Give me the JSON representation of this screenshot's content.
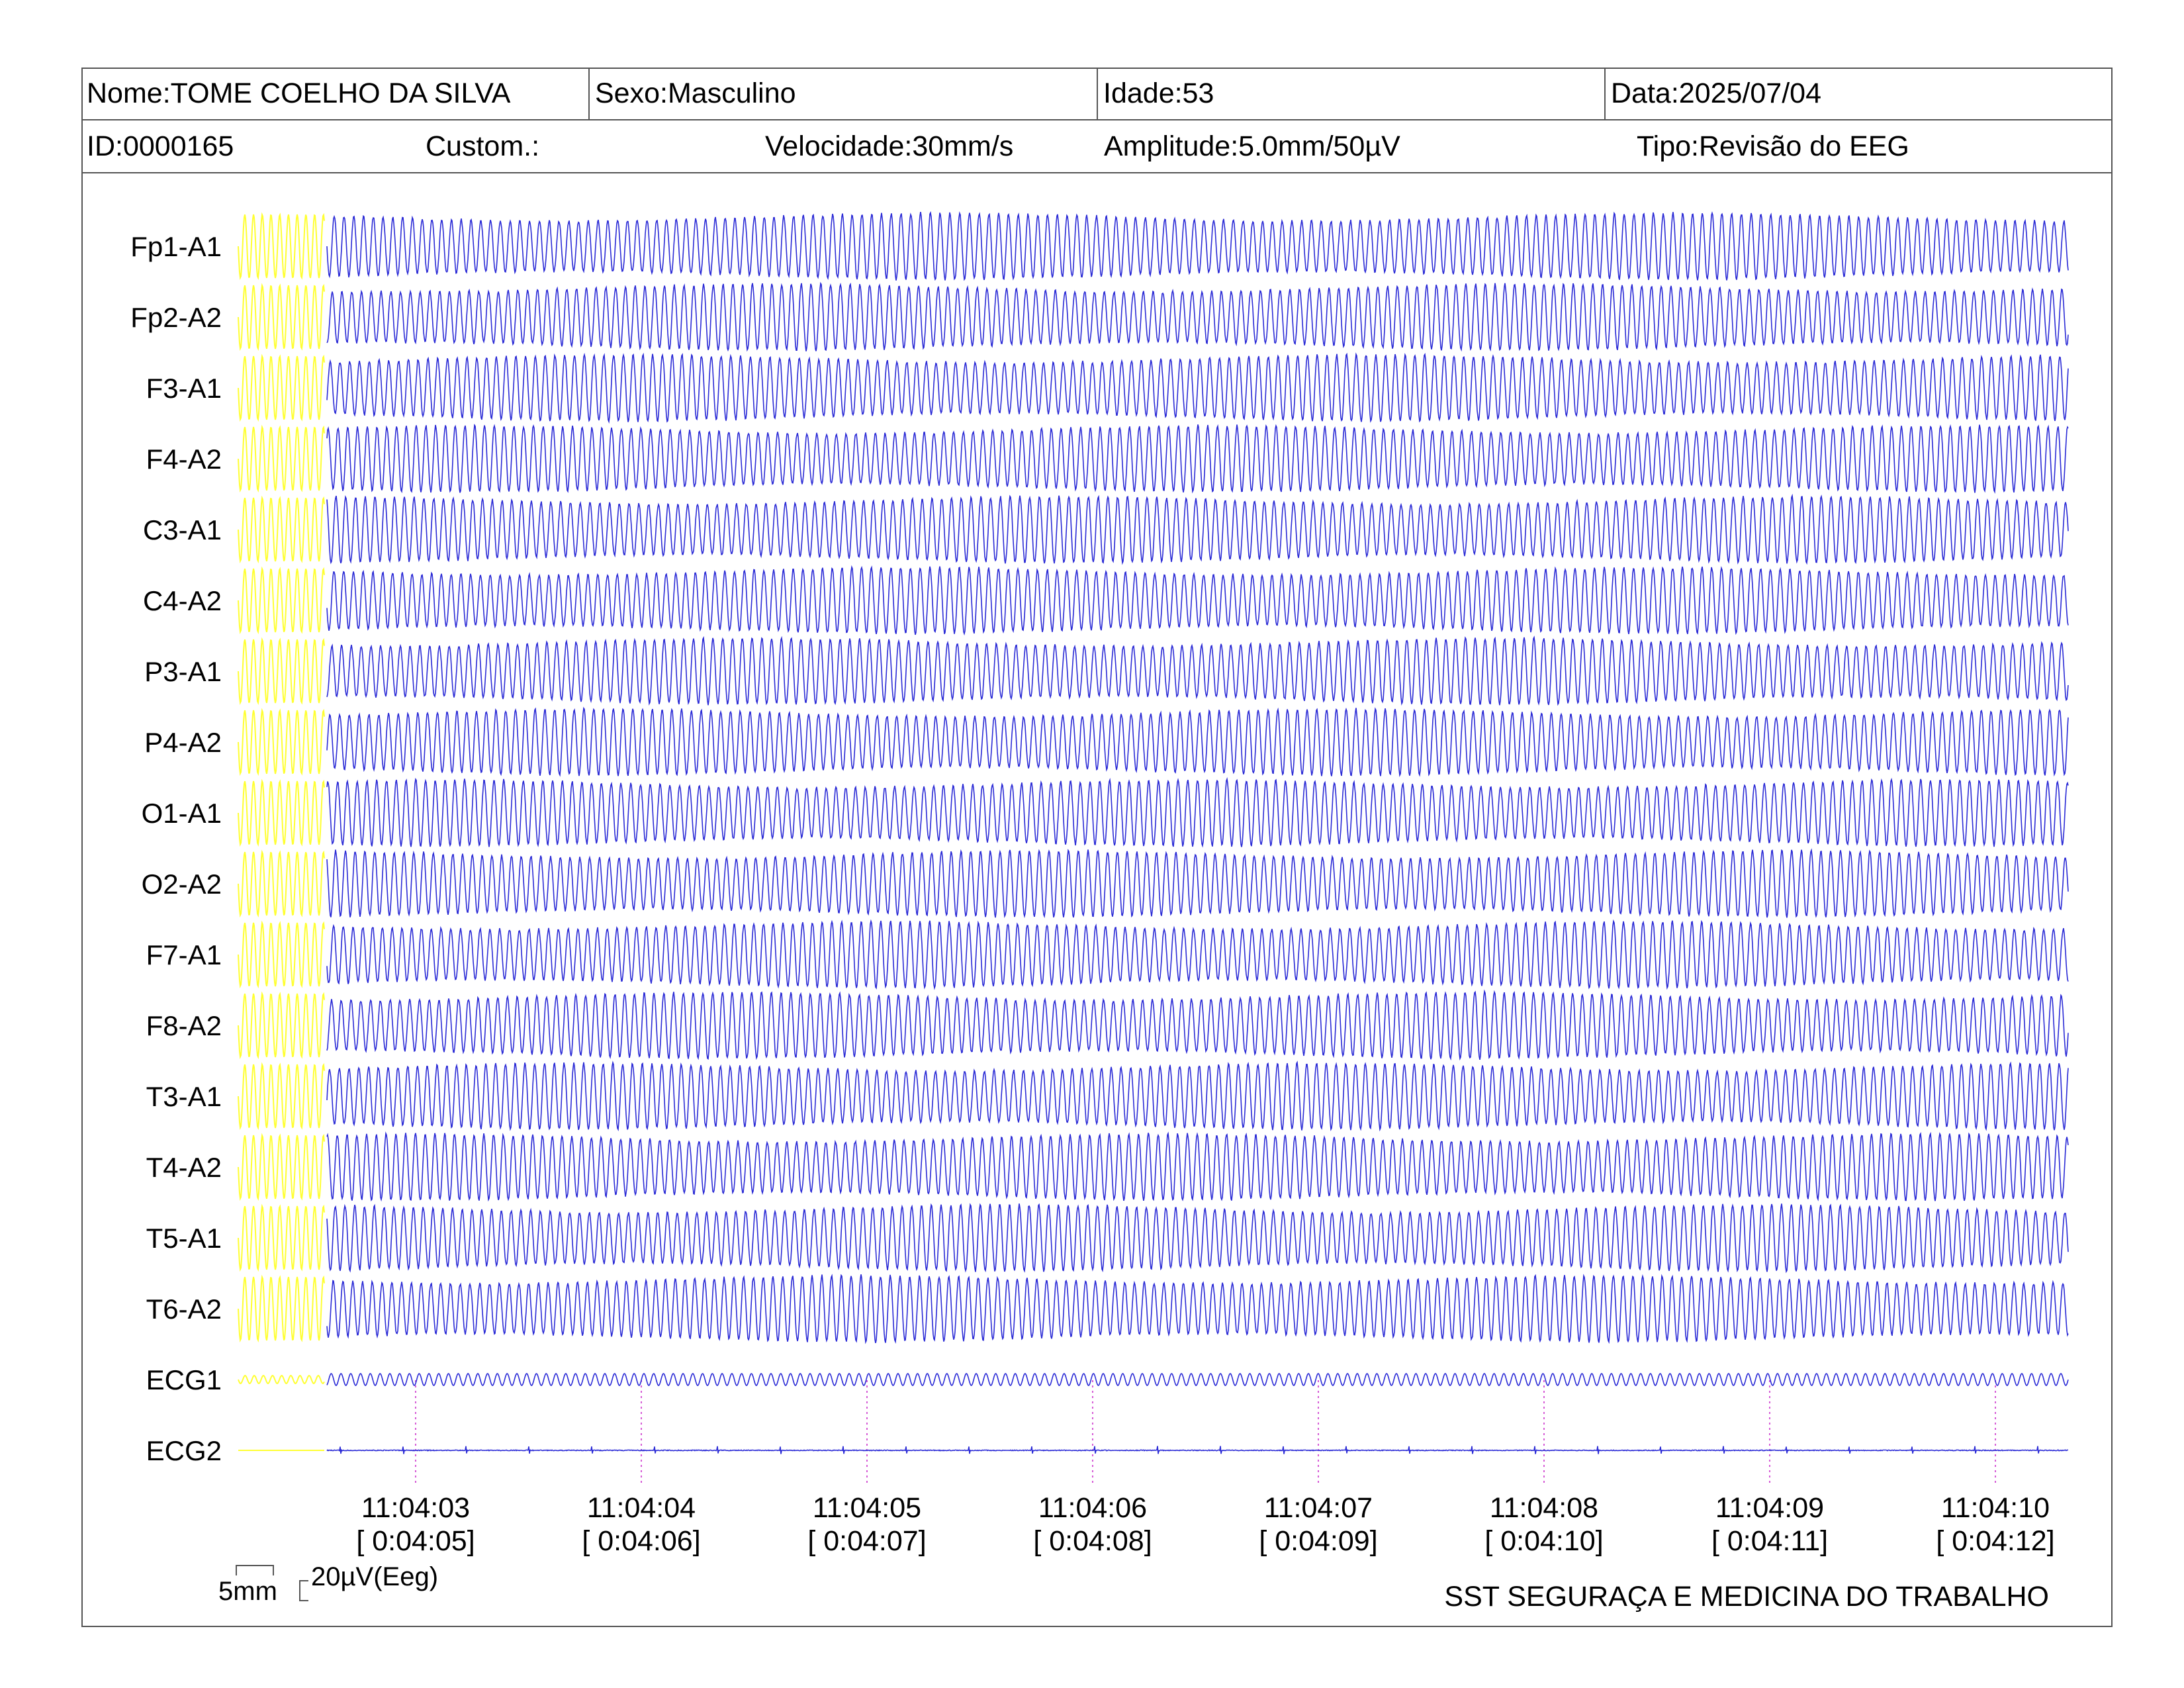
{
  "header": {
    "nome": "Nome:TOME COELHO DA SILVA",
    "sexo": "Sexo:Masculino",
    "idade": "Idade:53",
    "data": "Data:2025/07/04",
    "id": "ID:0000165",
    "custom": "Custom.:",
    "velocidade": "Velocidade:30mm/s",
    "amplitude": "Amplitude:5.0mm/50µV",
    "tipo": "Tipo:Revisão do EEG"
  },
  "scale": {
    "time": "5mm",
    "amplitude": "20µV(Eeg)"
  },
  "footer": "SST SEGURAÇA E MEDICINA DO TRABALHO",
  "colors": {
    "trace": "#2b2bd6",
    "calibration": "#ffff33",
    "time_marker": "#d65ad6",
    "border": "#555555"
  },
  "chart_data": {
    "type": "line",
    "channels": [
      "Fp1-A1",
      "Fp2-A2",
      "F3-A1",
      "F4-A2",
      "C3-A1",
      "C4-A2",
      "P3-A1",
      "P4-A2",
      "O1-A1",
      "O2-A2",
      "F7-A1",
      "F8-A2",
      "T3-A1",
      "T4-A2",
      "T5-A1",
      "T6-A2",
      "ECG1",
      "ECG2"
    ],
    "time_ticks": [
      {
        "clock": "11:04:03",
        "elapsed": "[ 0:04:05]"
      },
      {
        "clock": "11:04:04",
        "elapsed": "[ 0:04:06]"
      },
      {
        "clock": "11:04:05",
        "elapsed": "[ 0:04:07]"
      },
      {
        "clock": "11:04:06",
        "elapsed": "[ 0:04:08]"
      },
      {
        "clock": "11:04:07",
        "elapsed": "[ 0:04:09]"
      },
      {
        "clock": "11:04:08",
        "elapsed": "[ 0:04:10]"
      },
      {
        "clock": "11:04:09",
        "elapsed": "[ 0:04:11]"
      },
      {
        "clock": "11:04:10",
        "elapsed": "[ 0:04:12]"
      }
    ]
  }
}
